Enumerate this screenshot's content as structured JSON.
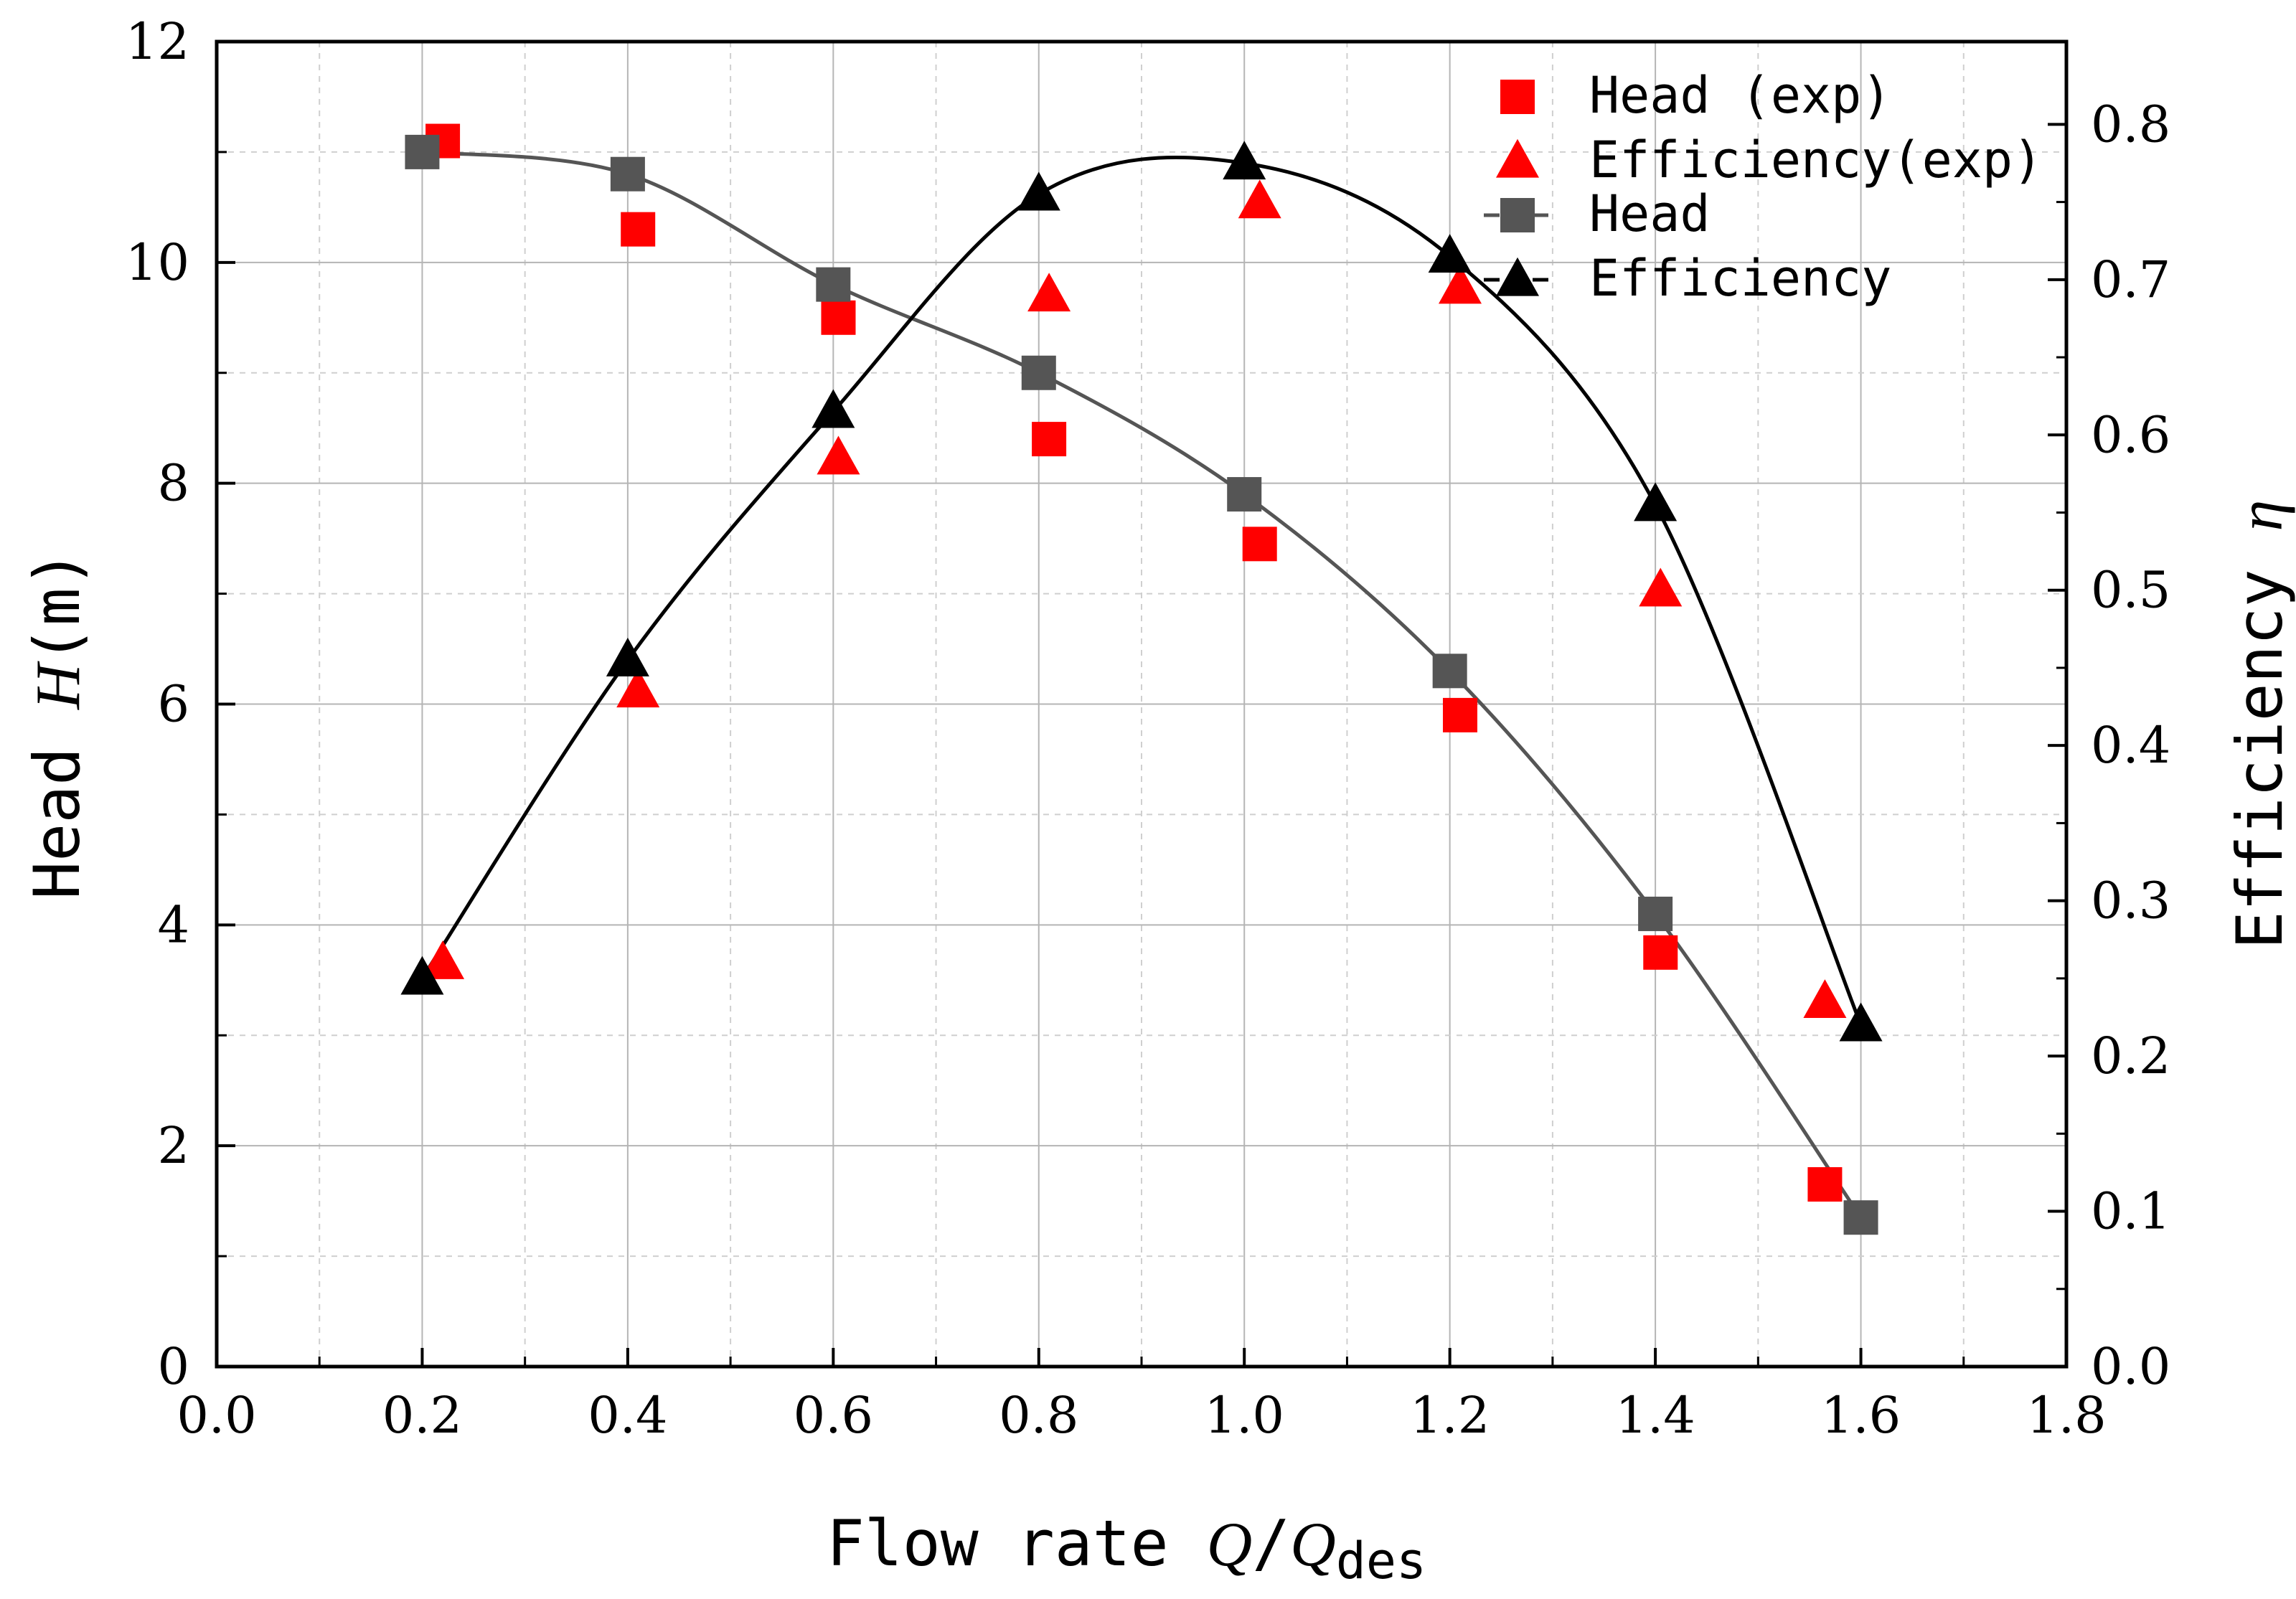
{
  "chart_data": {
    "type": "line",
    "xlabel": {
      "prefix": "Flow rate ",
      "q": "Q",
      "slash": "/",
      "q2": "Q",
      "sub": "des"
    },
    "ylabel_left": {
      "prefix": "Head ",
      "var": "H",
      "unit": "(m)"
    },
    "ylabel_right": {
      "prefix": "Efficiency ",
      "var": "η"
    },
    "xlim": [
      0.0,
      1.8
    ],
    "ylim_left": [
      0,
      12
    ],
    "ylim_right": [
      0.0,
      0.8533
    ],
    "grid": true,
    "legend_position": "top-right",
    "x_ticks": [
      "0.0",
      "0.2",
      "0.4",
      "0.6",
      "0.8",
      "1.0",
      "1.2",
      "1.4",
      "1.6",
      "1.8"
    ],
    "y_left_ticks": [
      "0",
      "2",
      "4",
      "6",
      "8",
      "10",
      "12"
    ],
    "y_right_ticks": [
      "0.0",
      "0.1",
      "0.2",
      "0.3",
      "0.4",
      "0.5",
      "0.6",
      "0.7",
      "0.8"
    ],
    "legend": [
      "Head (exp)",
      "Efficiency(exp)",
      "Head",
      "Efficiency"
    ],
    "series": [
      {
        "name": "Head (exp)",
        "axis": "left",
        "marker": "square",
        "color": "#ff0000",
        "line": false,
        "x": [
          0.22,
          0.41,
          0.605,
          0.81,
          1.015,
          1.21,
          1.405,
          1.565
        ],
        "y": [
          11.1,
          10.3,
          9.5,
          8.4,
          7.45,
          5.9,
          3.75,
          1.65
        ]
      },
      {
        "name": "Efficiency(exp)",
        "axis": "right",
        "marker": "triangle",
        "color": "#ff0000",
        "line": false,
        "x": [
          0.22,
          0.41,
          0.605,
          0.81,
          1.015,
          1.21,
          1.405,
          1.565
        ],
        "y": [
          0.26,
          0.435,
          0.585,
          0.69,
          0.75,
          0.695,
          0.5,
          0.235
        ]
      },
      {
        "name": "Head",
        "axis": "left",
        "marker": "square",
        "color": "#555555",
        "line": true,
        "x": [
          0.2,
          0.4,
          0.6,
          0.8,
          1.0,
          1.2,
          1.4,
          1.6
        ],
        "y": [
          11.0,
          10.8,
          9.8,
          9.0,
          7.9,
          6.3,
          4.1,
          1.35
        ]
      },
      {
        "name": "Efficiency",
        "axis": "right",
        "marker": "triangle",
        "color": "#000000",
        "line": true,
        "x": [
          0.2,
          0.4,
          0.6,
          0.8,
          1.0,
          1.2,
          1.4,
          1.6
        ],
        "y": [
          0.25,
          0.455,
          0.615,
          0.755,
          0.775,
          0.715,
          0.555,
          0.22
        ]
      }
    ]
  }
}
